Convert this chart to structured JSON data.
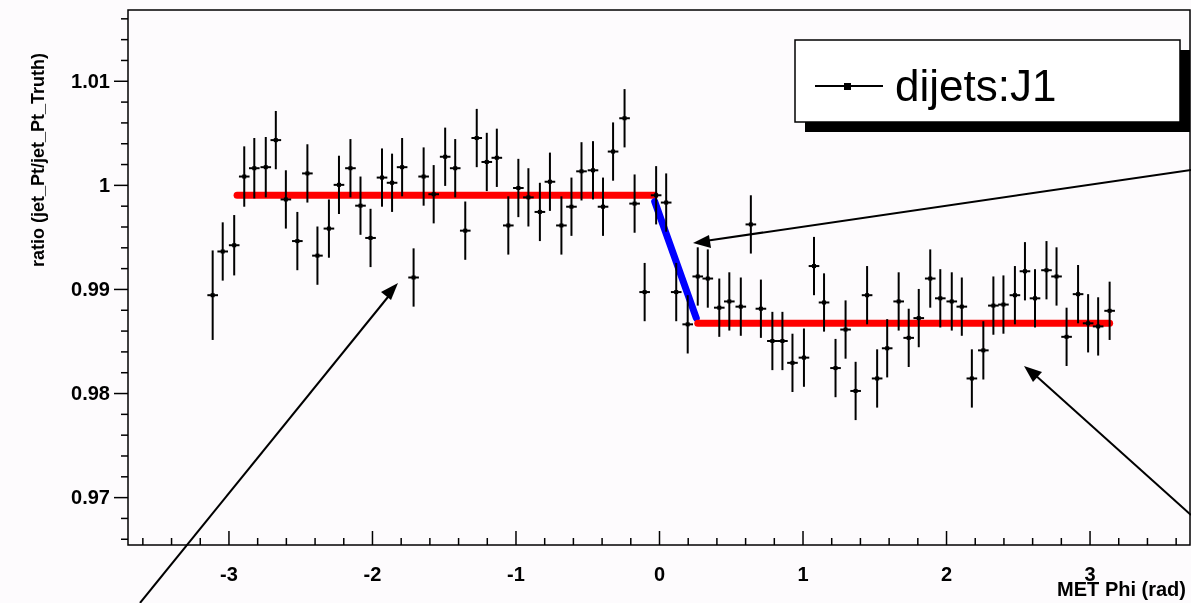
{
  "chart_data": {
    "type": "scatter",
    "xlabel": "MET Phi (rad)",
    "ylabel": "ratio (jet_Pt/jet_Pt_Truth)",
    "xlim": [
      -3.7,
      3.7
    ],
    "ylim": [
      0.9654,
      1.0168
    ],
    "xticks": [
      {
        "value": -3.6,
        "label": null
      },
      {
        "value": -3.4,
        "label": null
      },
      {
        "value": -3.2,
        "label": null
      },
      -3,
      {
        "value": -2.8,
        "label": null
      },
      {
        "value": -2.6,
        "label": null
      },
      {
        "value": -2.4,
        "label": null
      },
      {
        "value": -2.2,
        "label": null
      },
      -2,
      {
        "value": -1.8,
        "label": null
      },
      {
        "value": -1.6,
        "label": null
      },
      {
        "value": -1.4,
        "label": null
      },
      {
        "value": -1.2,
        "label": null
      },
      -1,
      {
        "value": -0.8,
        "label": null
      },
      {
        "value": -0.6,
        "label": null
      },
      {
        "value": -0.4,
        "label": null
      },
      {
        "value": -0.2,
        "label": null
      },
      0,
      {
        "value": 0.2,
        "label": null
      },
      {
        "value": 0.4,
        "label": null
      },
      {
        "value": 0.6,
        "label": null
      },
      {
        "value": 0.8,
        "label": null
      },
      1,
      {
        "value": 1.2,
        "label": null
      },
      {
        "value": 1.4,
        "label": null
      },
      {
        "value": 1.6,
        "label": null
      },
      {
        "value": 1.8,
        "label": null
      },
      2,
      {
        "value": 2.2,
        "label": null
      },
      {
        "value": 2.4,
        "label": null
      },
      {
        "value": 2.6,
        "label": null
      },
      {
        "value": 2.8,
        "label": null
      },
      3,
      {
        "value": 3.2,
        "label": null
      },
      {
        "value": 3.4,
        "label": null
      },
      {
        "value": 3.6,
        "label": null
      }
    ],
    "yticks": [
      {
        "value": 0.966,
        "label": null
      },
      {
        "value": 0.968,
        "label": null
      },
      0.97,
      {
        "value": 0.972,
        "label": null
      },
      {
        "value": 0.974,
        "label": null
      },
      {
        "value": 0.976,
        "label": null
      },
      {
        "value": 0.978,
        "label": null
      },
      0.98,
      {
        "value": 0.982,
        "label": null
      },
      {
        "value": 0.984,
        "label": null
      },
      {
        "value": 0.986,
        "label": null
      },
      {
        "value": 0.988,
        "label": null
      },
      0.99,
      {
        "value": 0.992,
        "label": null
      },
      {
        "value": 0.994,
        "label": null
      },
      {
        "value": 0.996,
        "label": null
      },
      {
        "value": 0.998,
        "label": null
      },
      1,
      {
        "value": 1.002,
        "label": null
      },
      {
        "value": 1.004,
        "label": null
      },
      {
        "value": 1.006,
        "label": null
      },
      {
        "value": 1.008,
        "label": null
      },
      1.01,
      {
        "value": 1.012,
        "label": null
      },
      {
        "value": 1.014,
        "label": null
      },
      {
        "value": 1.016,
        "label": null
      }
    ],
    "grid": false,
    "legend": "top right",
    "series": [
      {
        "name": "dijets:J1",
        "type": "scatter",
        "color": "#000000",
        "marker": "square",
        "x": [
          -3.11,
          -3.04,
          -2.96,
          -2.89,
          -2.82,
          -2.74,
          -2.67,
          -2.6,
          -2.52,
          -2.45,
          -2.38,
          -2.3,
          -2.23,
          -2.15,
          -2.08,
          -2.01,
          -1.93,
          -1.86,
          -1.79,
          -1.71,
          -1.64,
          -1.57,
          -1.49,
          -1.42,
          -1.35,
          -1.27,
          -1.2,
          -1.13,
          -1.05,
          -0.98,
          -0.91,
          -0.83,
          -0.76,
          -0.68,
          -0.61,
          -0.54,
          -0.46,
          -0.39,
          -0.32,
          -0.24,
          -0.17,
          -0.1,
          -0.02,
          0.05,
          0.12,
          0.2,
          0.27,
          0.34,
          0.42,
          0.49,
          0.57,
          0.64,
          0.71,
          0.79,
          0.86,
          0.93,
          1.01,
          1.08,
          1.15,
          1.23,
          1.3,
          1.37,
          1.45,
          1.52,
          1.59,
          1.67,
          1.74,
          1.81,
          1.89,
          1.96,
          2.04,
          2.11,
          2.18,
          2.26,
          2.33,
          2.4,
          2.48,
          2.55,
          2.62,
          2.7,
          2.77,
          2.84,
          2.92,
          2.99,
          3.06,
          3.14
        ],
        "values": [
          0.9894,
          0.9936,
          0.9942,
          1.0008,
          1.0016,
          1.0017,
          1.0043,
          0.9986,
          0.9946,
          1.0011,
          0.9932,
          0.9958,
          1.0,
          1.0016,
          0.998,
          0.9949,
          1.0007,
          1.0002,
          1.0017,
          0.9911,
          1.0008,
          0.9991,
          1.0027,
          1.0016,
          0.9956,
          1.0045,
          1.0022,
          1.0026,
          0.9961,
          0.9997,
          0.9988,
          0.9974,
          1.0003,
          0.9961,
          0.9979,
          1.0013,
          1.0014,
          0.9979,
          1.0032,
          1.0064,
          0.9982,
          0.9897,
          0.999,
          0.9983,
          0.9897,
          0.9866,
          0.9912,
          0.991,
          0.9882,
          0.9888,
          0.9883,
          0.9962,
          0.9881,
          0.985,
          0.985,
          0.9829,
          0.9834,
          0.9922,
          0.9887,
          0.9824,
          0.9861,
          0.9802,
          0.9894,
          0.9814,
          0.9843,
          0.9888,
          0.9853,
          0.9872,
          0.991,
          0.9891,
          0.9888,
          0.9883,
          0.9814,
          0.9841,
          0.9884,
          0.9885,
          0.9894,
          0.9917,
          0.9891,
          0.9918,
          0.9912,
          0.9854,
          0.9895,
          0.9867,
          0.9864,
          0.9879
        ],
        "errors": [
          0.0043,
          0.0028,
          0.0029,
          0.0029,
          0.0029,
          0.0029,
          0.0028,
          0.0028,
          0.0028,
          0.0028,
          0.0028,
          0.0028,
          0.0028,
          0.0028,
          0.0028,
          0.0028,
          0.0028,
          0.0028,
          0.0028,
          0.0028,
          0.0028,
          0.0028,
          0.0028,
          0.0028,
          0.0028,
          0.0028,
          0.0028,
          0.0028,
          0.0028,
          0.0028,
          0.0028,
          0.0028,
          0.0028,
          0.0028,
          0.0028,
          0.0028,
          0.0028,
          0.0028,
          0.0028,
          0.0028,
          0.0028,
          0.0028,
          0.0028,
          0.0028,
          0.0028,
          0.0028,
          0.0028,
          0.0028,
          0.0028,
          0.0028,
          0.0028,
          0.0028,
          0.0028,
          0.0028,
          0.0028,
          0.0028,
          0.0028,
          0.0028,
          0.0028,
          0.0028,
          0.0028,
          0.0028,
          0.0028,
          0.0028,
          0.0028,
          0.0028,
          0.0028,
          0.0028,
          0.0028,
          0.0028,
          0.0028,
          0.0028,
          0.0028,
          0.0028,
          0.0028,
          0.0028,
          0.0028,
          0.0028,
          0.0028,
          0.0028,
          0.0028,
          0.0028,
          0.0028,
          0.0028,
          0.0028,
          0.0028
        ],
        "xerrors": [
          0.037,
          0.037,
          0.037,
          0.037,
          0.037,
          0.037,
          0.037,
          0.037,
          0.037,
          0.037,
          0.037,
          0.037,
          0.037,
          0.037,
          0.037,
          0.037,
          0.037,
          0.037,
          0.037,
          0.037,
          0.037,
          0.037,
          0.037,
          0.037,
          0.037,
          0.037,
          0.037,
          0.037,
          0.037,
          0.037,
          0.037,
          0.037,
          0.037,
          0.037,
          0.037,
          0.037,
          0.037,
          0.037,
          0.037,
          0.037,
          0.037,
          0.037,
          0.037,
          0.037,
          0.037,
          0.037,
          0.037,
          0.037,
          0.037,
          0.037,
          0.037,
          0.037,
          0.037,
          0.037,
          0.037,
          0.037,
          0.037,
          0.037,
          0.037,
          0.037,
          0.037,
          0.037,
          0.037,
          0.037,
          0.037,
          0.037,
          0.037,
          0.037,
          0.037,
          0.037,
          0.037,
          0.037,
          0.037,
          0.037,
          0.037,
          0.037,
          0.037,
          0.037,
          0.037,
          0.037,
          0.037,
          0.037,
          0.037,
          0.037,
          0.037,
          0.037
        ]
      },
      {
        "type": "line",
        "color": "#ff0000",
        "x": [
          -2.94,
          -0.03
        ],
        "values": [
          0.999,
          0.999
        ]
      },
      {
        "type": "line",
        "color": "#0000ff",
        "x": [
          -0.03,
          0.26
        ],
        "values": [
          0.9984,
          0.9872
        ]
      },
      {
        "type": "line",
        "color": "#ff0000",
        "x": [
          0.27,
          3.14
        ],
        "values": [
          0.9867,
          0.9867
        ]
      }
    ]
  }
}
